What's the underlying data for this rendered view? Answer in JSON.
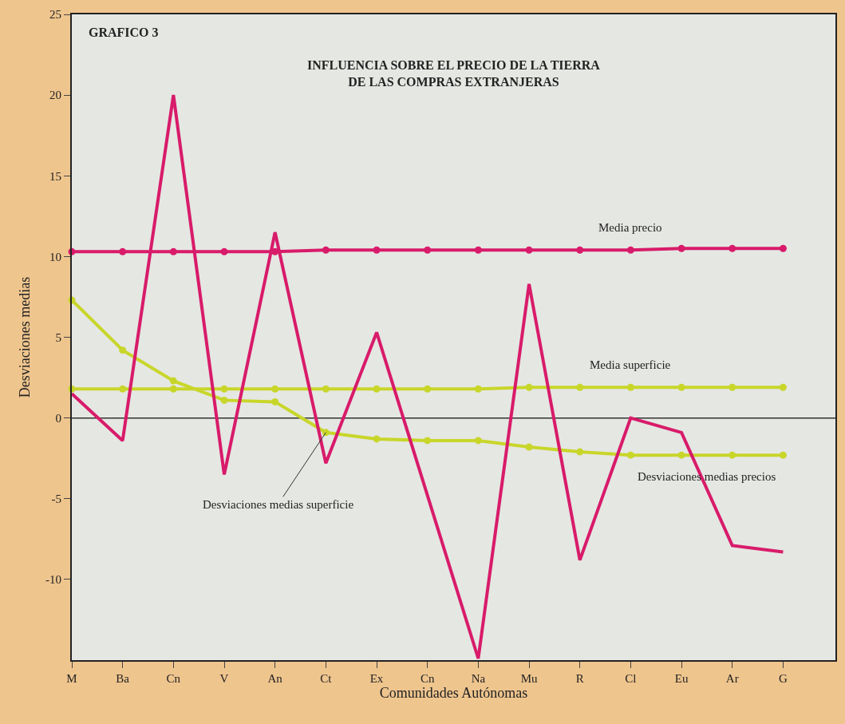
{
  "chart_data": {
    "type": "line",
    "title": "INFLUENCIA SOBRE EL PRECIO DE LA TIERRA\nDE LAS COMPRAS EXTRANJERAS",
    "xlabel": "Comunidades Autónomas",
    "ylabel": "Desviaciones medias",
    "annotations": [
      "GRAFICO 3"
    ],
    "categories": [
      "M",
      "Ba",
      "Cn",
      "V",
      "An",
      "Ct",
      "Ex",
      "Cn",
      "Na",
      "Mu",
      "R",
      "Cl",
      "Eu",
      "Ar",
      "G"
    ],
    "series": [
      {
        "name": "Media precio",
        "color": "#d81b6a",
        "marker": "circle",
        "values": [
          10.3,
          10.3,
          10.3,
          10.3,
          10.3,
          10.4,
          10.4,
          10.4,
          10.4,
          10.4,
          10.4,
          10.4,
          10.5,
          10.5,
          10.5
        ]
      },
      {
        "name": "Media superficie",
        "color": "#c8d62a",
        "marker": "circle",
        "values": [
          1.8,
          1.8,
          1.8,
          1.8,
          1.8,
          1.8,
          1.8,
          1.8,
          1.8,
          1.9,
          1.9,
          1.9,
          1.9,
          1.9,
          1.9
        ]
      },
      {
        "name": "Desviaciones medias superficie",
        "color": "#c8d62a",
        "marker": "circle",
        "values": [
          7.3,
          4.2,
          2.3,
          1.1,
          1.0,
          -0.9,
          -1.3,
          -1.4,
          -1.4,
          -1.8,
          -2.1,
          -2.3,
          -2.3,
          -2.3,
          -2.3
        ]
      },
      {
        "name": "Desviaciones medias precios",
        "color": "#d81b6a",
        "marker": "none",
        "values": [
          1.5,
          -1.4,
          20,
          -3.5,
          11.5,
          -2.8,
          5.3,
          -4.8,
          -14.9,
          8.3,
          -8.8,
          0,
          -0.9,
          -7.9,
          -8.3
        ]
      }
    ],
    "ylim": [
      -15,
      25
    ],
    "yticks": [
      25,
      20,
      15,
      10,
      5,
      0,
      -5,
      -10
    ],
    "ref_lines": [
      {
        "axis": "y",
        "value": 0,
        "color": "#333333"
      }
    ],
    "grid": false,
    "legend": false
  }
}
